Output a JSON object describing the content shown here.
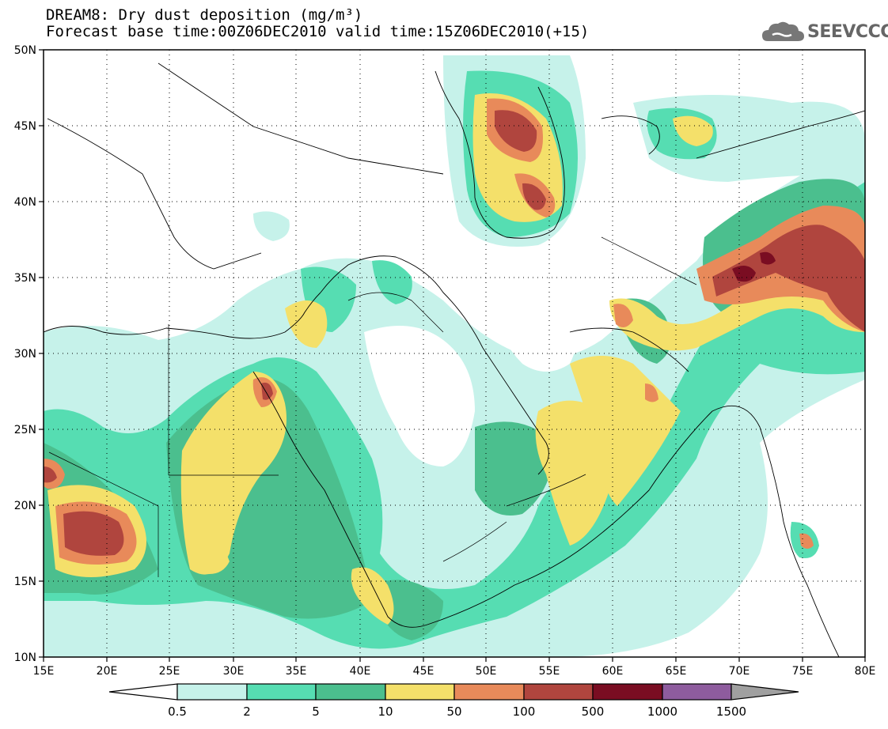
{
  "title_line1": "DREAM8: Dry dust deposition (mg/m³)",
  "title_line2": "Forecast base time:00Z06DEC2010 valid time:15Z06DEC2010(+15)",
  "logo_text": "SEEVCCC",
  "map": {
    "lat_labels": [
      "50N",
      "45N",
      "40N",
      "35N",
      "30N",
      "25N",
      "20N",
      "15N",
      "10N"
    ],
    "lon_labels": [
      "15E",
      "20E",
      "25E",
      "30E",
      "35E",
      "40E",
      "45E",
      "50E",
      "55E",
      "60E",
      "65E",
      "70E",
      "75E",
      "80E"
    ],
    "lon_range": [
      15,
      80
    ],
    "lat_range": [
      10,
      50
    ],
    "grid": "dotted"
  },
  "colorbar": {
    "labels": [
      "0.5",
      "2",
      "5",
      "10",
      "50",
      "100",
      "500",
      "1000",
      "1500"
    ],
    "colors": [
      "#ffffff",
      "#c6f2ea",
      "#56ddb2",
      "#4bbf8e",
      "#f4e06a",
      "#e88a5a",
      "#b0453e",
      "#7a0d22",
      "#8e5c9e",
      "#a0a0a0"
    ]
  }
}
